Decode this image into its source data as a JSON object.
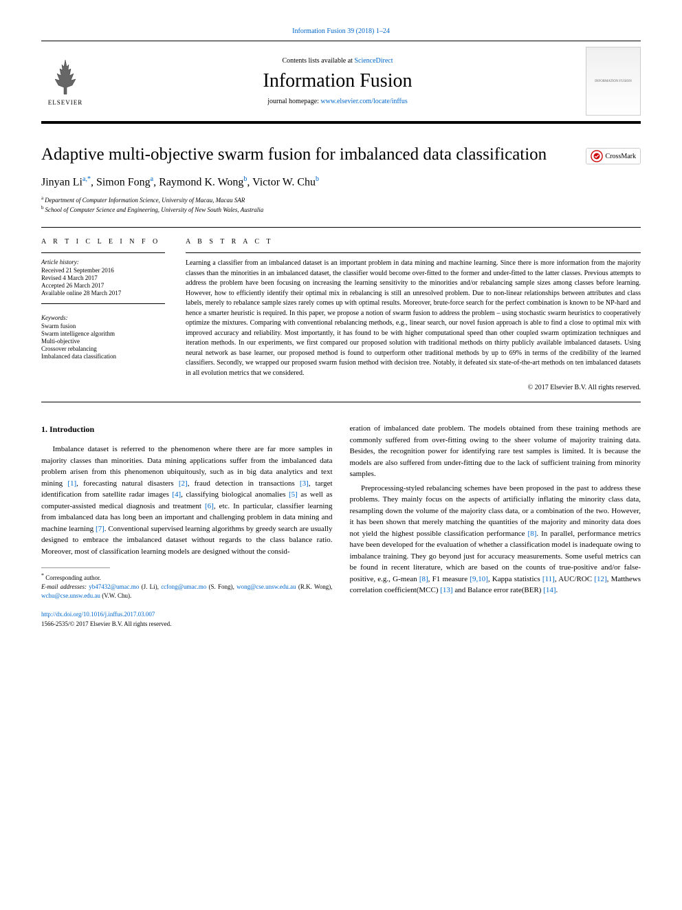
{
  "journal_ref": "Information Fusion 39 (2018) 1–24",
  "header": {
    "publisher": "ELSEVIER",
    "contents_prefix": "Contents lists available at ",
    "contents_link": "ScienceDirect",
    "journal_name": "Information Fusion",
    "homepage_prefix": "journal homepage: ",
    "homepage_url": "www.elsevier.com/locate/inffus",
    "cover_text": "INFORMATION FUSION"
  },
  "crossmark_label": "CrossMark",
  "title": "Adaptive multi-objective swarm fusion for imbalanced data classification",
  "authors_html": "Jinyan Li|a,*|, Simon Fong|a|, Raymond K. Wong|b|, Victor W. Chu|b|",
  "affiliations": [
    {
      "sup": "a",
      "text": "Department of Computer Information Science, University of Macau, Macau SAR"
    },
    {
      "sup": "b",
      "text": "School of Computer Science and Engineering, University of New South Wales, Australia"
    }
  ],
  "article_info": {
    "heading": "A R T I C L E   I N F O",
    "history_label": "Article history:",
    "history": [
      "Received 21 September 2016",
      "Revised 4 March 2017",
      "Accepted 26 March 2017",
      "Available online 28 March 2017"
    ],
    "keywords_label": "Keywords:",
    "keywords": [
      "Swarm fusion",
      "Swarm intelligence algorithm",
      "Multi-objective",
      "Crossover rebalancing",
      "Imbalanced data classification"
    ]
  },
  "abstract": {
    "heading": "A B S T R A C T",
    "text": "Learning a classifier from an imbalanced dataset is an important problem in data mining and machine learning. Since there is more information from the majority classes than the minorities in an imbalanced dataset, the classifier would become over-fitted to the former and under-fitted to the latter classes. Previous attempts to address the problem have been focusing on increasing the learning sensitivity to the minorities and/or rebalancing sample sizes among classes before learning. However, how to efficiently identify their optimal mix in rebalancing is still an unresolved problem. Due to non-linear relationships between attributes and class labels, merely to rebalance sample sizes rarely comes up with optimal results. Moreover, brute-force search for the perfect combination is known to be NP-hard and hence a smarter heuristic is required. In this paper, we propose a notion of swarm fusion to address the problem – using stochastic swarm heuristics to cooperatively optimize the mixtures. Comparing with conventional rebalancing methods, e.g., linear search, our novel fusion approach is able to find a close to optimal mix with improved accuracy and reliability. Most importantly, it has found to be with higher computational speed than other coupled swarm optimization techniques and iteration methods. In our experiments, we first compared our proposed solution with traditional methods on thirty publicly available imbalanced datasets. Using neural network as base learner, our proposed method is found to outperform other traditional methods by up to 69% in terms of the credibility of the learned classifiers. Secondly, we wrapped our proposed swarm fusion method with decision tree. Notably, it defeated six state-of-the-art methods on ten imbalanced datasets in all evolution metrics that we considered.",
    "copyright": "© 2017 Elsevier B.V. All rights reserved."
  },
  "intro": {
    "heading": "1. Introduction",
    "col1_p1_parts": [
      "Imbalance dataset is referred to the phenomenon where there are far more samples in majority classes than minorities. Data mining applications suffer from the imbalanced data problem arisen from this phenomenon ubiquitously, such as in big data analytics and text mining ",
      "[1]",
      ", forecasting natural disasters ",
      "[2]",
      ", fraud detection in transactions ",
      "[3]",
      ", target identification from satellite radar images ",
      "[4]",
      ", classifying biological anomalies ",
      "[5]",
      " as well as computer-assisted medical diagnosis and treatment ",
      "[6]",
      ", etc. In particular, classifier learning from imbalanced data has long been an important and challenging problem in data mining and machine learning ",
      "[7]",
      ". Conventional supervised learning algorithms by greedy search are usually designed to embrace the imbalanced dataset without regards to the class balance ratio. Moreover, most of classification learning models are designed without the consid-"
    ],
    "col2_p1": "eration of imbalanced date problem. The models obtained from these training methods are commonly suffered from over-fitting owing to the sheer volume of majority training data. Besides, the recognition power for identifying rare test samples is limited. It is because the models are also suffered from under-fitting due to the lack of sufficient training from minority samples.",
    "col2_p2_parts": [
      "Preprocessing-styled rebalancing schemes have been proposed in the past to address these problems. They mainly focus on the aspects of artificially inflating the minority class data, resampling down the volume of the majority class data, or a combination of the two. However, it has been shown that merely matching the quantities of the majority and minority data does not yield the highest possible classification performance ",
      "[8]",
      ". In parallel, performance metrics have been developed for the evaluation of whether a classification model is inadequate owing to imbalance training. They go beyond just for accuracy measurements. Some useful metrics can be found in recent literature, which are based on the counts of true-positive and/or false-positive, e.g., G-mean ",
      "[8]",
      ", F1 measure ",
      "[9,10]",
      ", Kappa statistics ",
      "[11]",
      ", AUC/ROC ",
      "[12]",
      ", Matthews correlation coefficient(MCC) ",
      "[13]",
      " and Balance error rate(BER) ",
      "[14]",
      "."
    ]
  },
  "footnotes": {
    "corr": "Corresponding author.",
    "emails_prefix": "E-mail addresses: ",
    "emails": [
      {
        "email": "yb47432@umac.mo",
        "name": "(J. Li)"
      },
      {
        "email": "ccfong@umac.mo",
        "name": "(S. Fong)"
      },
      {
        "email": "wong@cse.unsw.edu.au",
        "name": "(R.K. Wong)"
      },
      {
        "email": "wchu@cse.unsw.edu.au",
        "name": "(V.W. Chu)"
      }
    ]
  },
  "footer": {
    "doi": "http://dx.doi.org/10.1016/j.inffus.2017.03.007",
    "issn_copyright": "1566-2535/© 2017 Elsevier B.V. All rights reserved."
  },
  "colors": {
    "link": "#0066cc",
    "text": "#000000",
    "border": "#000000"
  }
}
